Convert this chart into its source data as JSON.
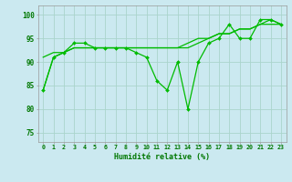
{
  "xlabel": "Humidité relative (%)",
  "background_color": "#cbe9f0",
  "grid_color": "#aad4cc",
  "line_color": "#00bb00",
  "ylim": [
    73,
    102
  ],
  "xlim": [
    -0.5,
    23.5
  ],
  "yticks": [
    75,
    80,
    85,
    90,
    95,
    100
  ],
  "xticks": [
    0,
    1,
    2,
    3,
    4,
    5,
    6,
    7,
    8,
    9,
    10,
    11,
    12,
    13,
    14,
    15,
    16,
    17,
    18,
    19,
    20,
    21,
    22,
    23
  ],
  "series1": [
    84,
    91,
    92,
    94,
    94,
    93,
    93,
    93,
    93,
    92,
    91,
    86,
    84,
    90,
    80,
    90,
    94,
    95,
    98,
    95,
    95,
    99,
    99,
    98
  ],
  "series2": [
    84,
    91,
    92,
    93,
    93,
    93,
    93,
    93,
    93,
    93,
    93,
    93,
    93,
    93,
    93,
    94,
    95,
    96,
    96,
    97,
    97,
    98,
    98,
    98
  ],
  "series3": [
    91,
    92,
    92,
    93,
    93,
    93,
    93,
    93,
    93,
    93,
    93,
    93,
    93,
    93,
    94,
    95,
    95,
    96,
    96,
    97,
    97,
    98,
    99,
    98
  ]
}
